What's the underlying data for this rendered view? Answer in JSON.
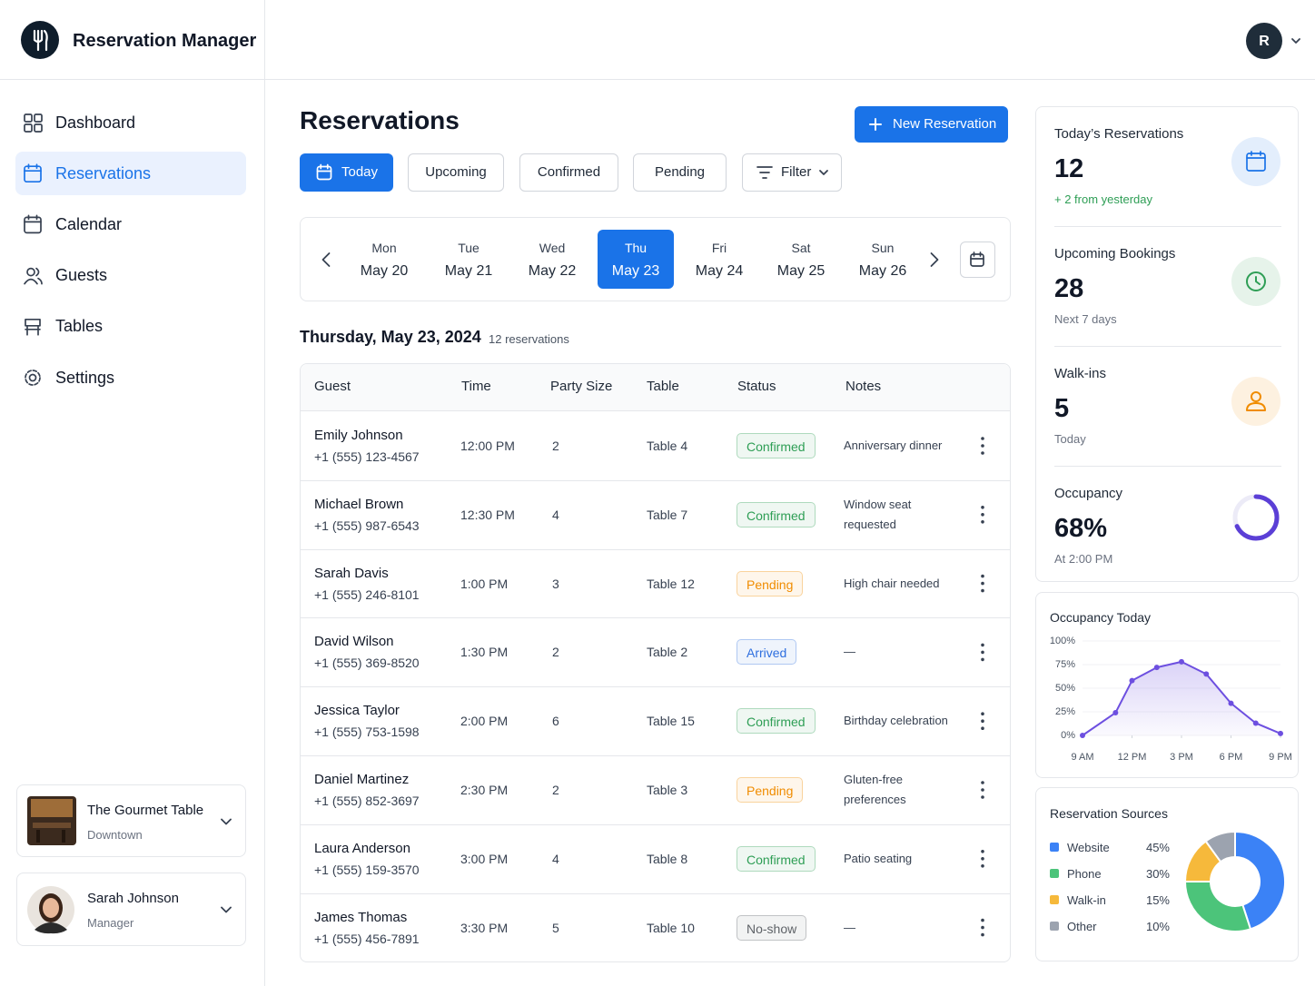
{
  "header": {
    "app_name": "Reservation Manager",
    "avatar_initial": "R"
  },
  "nav": {
    "items": [
      "Dashboard",
      "Reservations",
      "Calendar",
      "Guests",
      "Tables",
      "Settings"
    ],
    "active": 1
  },
  "restaurant": {
    "name": "The Gourmet Table",
    "location": "Downtown"
  },
  "user": {
    "name": "Sarah Johnson",
    "role": "Manager"
  },
  "page": {
    "title": "Reservations",
    "new_button": "New Reservation",
    "tabs": {
      "items": [
        "Today",
        "Upcoming",
        "Confirmed",
        "Pending"
      ],
      "active": 0
    },
    "filter": "Filter"
  },
  "dates": {
    "items": [
      {
        "day": "Mon",
        "date": "May 20"
      },
      {
        "day": "Tue",
        "date": "May 21"
      },
      {
        "day": "Wed",
        "date": "May 22"
      },
      {
        "day": "Thu",
        "date": "May 23"
      },
      {
        "day": "Fri",
        "date": "May 24"
      },
      {
        "day": "Sat",
        "date": "May 25"
      },
      {
        "day": "Sun",
        "date": "May 26"
      }
    ],
    "selected": 3
  },
  "day_heading": {
    "date": "Thursday, May 23, 2024",
    "count": "12 reservations"
  },
  "table": {
    "columns": [
      "Guest",
      "Time",
      "Party Size",
      "Table",
      "Status",
      "Notes"
    ],
    "rows": [
      {
        "name": "Emily Johnson",
        "phone": "+1 (555) 123-4567",
        "time": "12:00 PM",
        "party": 2,
        "table": "Table 4",
        "status": {
          "label": "Confirmed",
          "color": "#2e9e55"
        },
        "notes": "Anniversary dinner"
      },
      {
        "name": "Michael Brown",
        "phone": "+1 (555) 987-6543",
        "time": "12:30 PM",
        "party": 4,
        "table": "Table 7",
        "status": {
          "label": "Confirmed",
          "color": "#2e9e55"
        },
        "notes": "Window seat requested"
      },
      {
        "name": "Sarah Davis",
        "phone": "+1 (555) 246-8101",
        "time": "1:00 PM",
        "party": 3,
        "table": "Table 12",
        "status": {
          "label": "Pending",
          "color": "#f08c00"
        },
        "notes": "High chair needed"
      },
      {
        "name": "David Wilson",
        "phone": "+1 (555) 369-8520",
        "time": "1:30 PM",
        "party": 2,
        "table": "Table 2",
        "status": {
          "label": "Arrived",
          "color": "#2f6fdf"
        },
        "notes": "—"
      },
      {
        "name": "Jessica Taylor",
        "phone": "+1 (555) 753-1598",
        "time": "2:00 PM",
        "party": 6,
        "table": "Table 15",
        "status": {
          "label": "Confirmed",
          "color": "#2e9e55"
        },
        "notes": "Birthday celebration"
      },
      {
        "name": "Daniel Martinez",
        "phone": "+1 (555) 852-3697",
        "time": "2:30 PM",
        "party": 2,
        "table": "Table 3",
        "status": {
          "label": "Pending",
          "color": "#f08c00"
        },
        "notes": "Gluten-free preferences"
      },
      {
        "name": "Laura Anderson",
        "phone": "+1 (555) 159-3570",
        "time": "3:00 PM",
        "party": 4,
        "table": "Table 8",
        "status": {
          "label": "Confirmed",
          "color": "#2e9e55"
        },
        "notes": "Patio seating"
      },
      {
        "name": "James Thomas",
        "phone": "+1 (555) 456-7891",
        "time": "3:30 PM",
        "party": 5,
        "table": "Table 10",
        "status": {
          "label": "No-show",
          "color": "#5f6368"
        },
        "notes": "—"
      }
    ]
  },
  "stats": [
    {
      "label": "Today’s Reservations",
      "value": 12,
      "sub": "+ 2 from yesterday",
      "sub_color": "#2e9e55",
      "color": "#1a73e8"
    },
    {
      "label": "Upcoming Bookings",
      "value": 28,
      "sub": "Next 7 days",
      "sub_color": "#6b7280",
      "color": "#2e9e55"
    },
    {
      "label": "Walk-ins",
      "value": 5,
      "sub": "Today",
      "sub_color": "#6b7280",
      "color": "#f08c00"
    },
    {
      "label": "Occupancy",
      "value": 68,
      "value_label": "68%",
      "sub": "At 2:00 PM",
      "sub_color": "#6b7280",
      "color": "#5b3fd6"
    }
  ],
  "chart_data": [
    {
      "type": "line",
      "title": "Occupancy Today",
      "x": [
        9,
        11,
        12,
        13.5,
        15,
        16.5,
        18,
        19.5,
        21
      ],
      "values": [
        0,
        24,
        58,
        72,
        78,
        65,
        34,
        13,
        2
      ],
      "color": "#6d4fe0",
      "xlim": [
        9,
        21
      ],
      "xticks": [
        {
          "value": 9,
          "label": "9 AM"
        },
        {
          "value": 12,
          "label": "12 PM"
        },
        {
          "value": 15,
          "label": "3 PM"
        },
        {
          "value": 18,
          "label": "6 PM"
        },
        {
          "value": 21,
          "label": "9 PM"
        }
      ],
      "ylim": [
        0,
        100
      ],
      "yticks": [
        {
          "value": 0,
          "label": "0%"
        },
        {
          "value": 25,
          "label": "25%"
        },
        {
          "value": 50,
          "label": "50%"
        },
        {
          "value": 75,
          "label": "75%"
        },
        {
          "value": 100,
          "label": "100%"
        }
      ]
    },
    {
      "type": "pie",
      "title": "Reservation Sources",
      "categories": [
        "Website",
        "Phone",
        "Walk-in",
        "Other"
      ],
      "values": [
        45,
        30,
        15,
        10
      ],
      "value_labels": [
        "45%",
        "30%",
        "15%",
        "10%"
      ],
      "colors": [
        "#3b82f6",
        "#4cc47a",
        "#f6b93b",
        "#9ca3af"
      ]
    }
  ]
}
